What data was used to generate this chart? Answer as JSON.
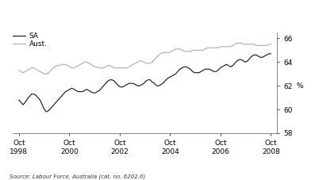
{
  "ylabel": "%",
  "source_text": "Source: Labour Force, Australia (cat. no. 6202.0)",
  "ylim": [
    58,
    66.5
  ],
  "yticks": [
    58,
    60,
    62,
    64,
    66
  ],
  "xtick_labels": [
    "Oct\n1998",
    "Oct\n2000",
    "Oct\n2002",
    "Oct\n2004",
    "Oct\n2006",
    "Oct\n2008"
  ],
  "sa_color": "#111111",
  "aust_color": "#aaaaaa",
  "legend_sa": "SA",
  "legend_aust": "Aust.",
  "sa_data": [
    60.8,
    60.6,
    60.4,
    60.6,
    60.9,
    61.1,
    61.3,
    61.3,
    61.2,
    61.0,
    60.8,
    60.4,
    60.0,
    59.8,
    59.9,
    60.1,
    60.3,
    60.5,
    60.7,
    60.9,
    61.1,
    61.3,
    61.5,
    61.6,
    61.7,
    61.8,
    61.7,
    61.6,
    61.5,
    61.5,
    61.5,
    61.6,
    61.7,
    61.6,
    61.5,
    61.4,
    61.4,
    61.5,
    61.6,
    61.8,
    62.0,
    62.2,
    62.4,
    62.5,
    62.5,
    62.4,
    62.2,
    62.0,
    61.9,
    61.9,
    62.0,
    62.1,
    62.2,
    62.2,
    62.2,
    62.1,
    62.0,
    62.0,
    62.1,
    62.2,
    62.4,
    62.5,
    62.5,
    62.3,
    62.2,
    62.0,
    62.0,
    62.1,
    62.2,
    62.4,
    62.6,
    62.7,
    62.8,
    62.9,
    63.0,
    63.2,
    63.4,
    63.5,
    63.6,
    63.6,
    63.5,
    63.4,
    63.2,
    63.1,
    63.1,
    63.1,
    63.2,
    63.3,
    63.4,
    63.4,
    63.4,
    63.3,
    63.2,
    63.2,
    63.3,
    63.5,
    63.6,
    63.7,
    63.8,
    63.7,
    63.6,
    63.7,
    63.9,
    64.1,
    64.2,
    64.2,
    64.1,
    64.0,
    64.1,
    64.3,
    64.5,
    64.6,
    64.6,
    64.5,
    64.4,
    64.4,
    64.5,
    64.6,
    64.7,
    64.7
  ],
  "aust_data": [
    63.3,
    63.2,
    63.1,
    63.2,
    63.3,
    63.4,
    63.5,
    63.5,
    63.4,
    63.3,
    63.2,
    63.1,
    63.0,
    63.0,
    63.1,
    63.3,
    63.5,
    63.6,
    63.7,
    63.7,
    63.8,
    63.8,
    63.8,
    63.7,
    63.6,
    63.5,
    63.5,
    63.6,
    63.7,
    63.8,
    63.9,
    64.0,
    64.0,
    63.9,
    63.8,
    63.7,
    63.6,
    63.6,
    63.5,
    63.5,
    63.5,
    63.6,
    63.7,
    63.7,
    63.6,
    63.5,
    63.5,
    63.5,
    63.5,
    63.5,
    63.5,
    63.5,
    63.6,
    63.7,
    63.8,
    63.9,
    64.0,
    64.1,
    64.1,
    64.0,
    63.9,
    63.9,
    63.9,
    64.0,
    64.2,
    64.4,
    64.6,
    64.7,
    64.8,
    64.8,
    64.8,
    64.8,
    64.9,
    65.0,
    65.1,
    65.1,
    65.1,
    65.0,
    64.9,
    64.9,
    64.9,
    64.9,
    65.0,
    65.0,
    65.0,
    65.0,
    65.0,
    65.0,
    65.1,
    65.2,
    65.2,
    65.2,
    65.2,
    65.2,
    65.2,
    65.3,
    65.3,
    65.3,
    65.3,
    65.3,
    65.3,
    65.4,
    65.5,
    65.6,
    65.6,
    65.6,
    65.5,
    65.5,
    65.5,
    65.5,
    65.5,
    65.5,
    65.4,
    65.4,
    65.4,
    65.4,
    65.4,
    65.4,
    65.5,
    65.5
  ],
  "background_color": "#ffffff",
  "figsize": [
    3.97,
    2.27
  ],
  "dpi": 100
}
